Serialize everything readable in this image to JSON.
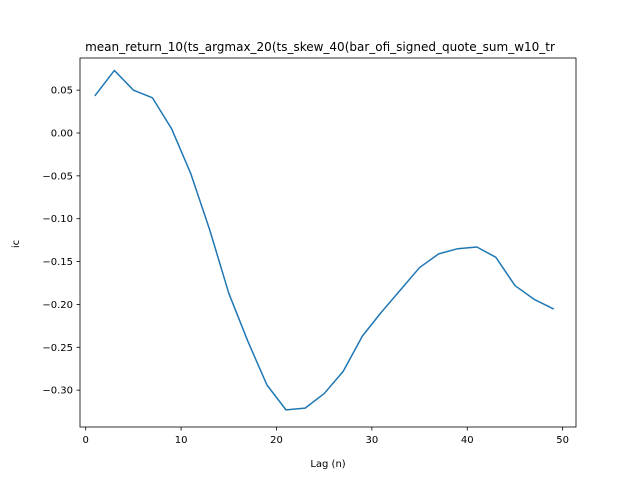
{
  "chart_data": {
    "type": "line",
    "title": "mean_return_10(ts_argmax_20(ts_skew_40(bar_ofi_signed_quote_sum_w10_tr",
    "xlabel": "Lag (n)",
    "ylabel": "ic",
    "xlim": [
      -0.6,
      51.4
    ],
    "ylim": [
      -0.343,
      0.0875
    ],
    "xticks": [
      0,
      10,
      20,
      30,
      40,
      50
    ],
    "yticks": [
      0.05,
      0.0,
      -0.05,
      -0.1,
      -0.15,
      -0.2,
      -0.25,
      -0.3
    ],
    "ytick_labels": [
      "0.05",
      "0.00",
      "−0.05",
      "−0.10",
      "−0.15",
      "−0.20",
      "−0.25",
      "−0.30"
    ],
    "grid": false,
    "series": [
      {
        "color": "#1f77b4",
        "x": [
          1,
          3,
          5,
          7,
          9,
          11,
          13,
          15,
          17,
          19,
          21,
          23,
          25,
          27,
          29,
          31,
          33,
          35,
          37,
          39,
          41,
          43,
          45,
          47,
          49
        ],
        "y": [
          0.044,
          0.073,
          0.05,
          0.041,
          0.005,
          -0.047,
          -0.113,
          -0.187,
          -0.243,
          -0.294,
          -0.323,
          -0.321,
          -0.304,
          -0.278,
          -0.237,
          -0.209,
          -0.183,
          -0.157,
          -0.141,
          -0.135,
          -0.133,
          -0.145,
          -0.178,
          -0.194,
          -0.205
        ]
      }
    ]
  }
}
